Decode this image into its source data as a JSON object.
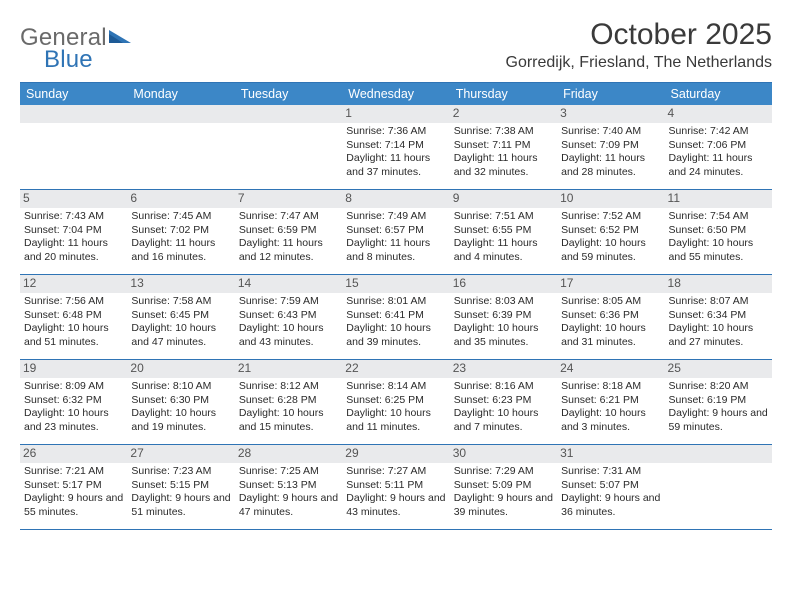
{
  "logo": {
    "part1": "General",
    "part2": "Blue"
  },
  "title": "October 2025",
  "location": "Gorredijk, Friesland, The Netherlands",
  "colors": {
    "header_bg": "#3c87c7",
    "border": "#2f74b5",
    "daynum_bg": "#e9eaec",
    "text": "#2a2a2a",
    "logo_gray": "#6a6a6a",
    "logo_blue": "#2f74b5"
  },
  "days_of_week": [
    "Sunday",
    "Monday",
    "Tuesday",
    "Wednesday",
    "Thursday",
    "Friday",
    "Saturday"
  ],
  "weeks": [
    [
      {
        "n": "",
        "empty": true
      },
      {
        "n": "",
        "empty": true
      },
      {
        "n": "",
        "empty": true
      },
      {
        "n": "1",
        "sr": "Sunrise: 7:36 AM",
        "ss": "Sunset: 7:14 PM",
        "dl": "Daylight: 11 hours and 37 minutes."
      },
      {
        "n": "2",
        "sr": "Sunrise: 7:38 AM",
        "ss": "Sunset: 7:11 PM",
        "dl": "Daylight: 11 hours and 32 minutes."
      },
      {
        "n": "3",
        "sr": "Sunrise: 7:40 AM",
        "ss": "Sunset: 7:09 PM",
        "dl": "Daylight: 11 hours and 28 minutes."
      },
      {
        "n": "4",
        "sr": "Sunrise: 7:42 AM",
        "ss": "Sunset: 7:06 PM",
        "dl": "Daylight: 11 hours and 24 minutes."
      }
    ],
    [
      {
        "n": "5",
        "sr": "Sunrise: 7:43 AM",
        "ss": "Sunset: 7:04 PM",
        "dl": "Daylight: 11 hours and 20 minutes."
      },
      {
        "n": "6",
        "sr": "Sunrise: 7:45 AM",
        "ss": "Sunset: 7:02 PM",
        "dl": "Daylight: 11 hours and 16 minutes."
      },
      {
        "n": "7",
        "sr": "Sunrise: 7:47 AM",
        "ss": "Sunset: 6:59 PM",
        "dl": "Daylight: 11 hours and 12 minutes."
      },
      {
        "n": "8",
        "sr": "Sunrise: 7:49 AM",
        "ss": "Sunset: 6:57 PM",
        "dl": "Daylight: 11 hours and 8 minutes."
      },
      {
        "n": "9",
        "sr": "Sunrise: 7:51 AM",
        "ss": "Sunset: 6:55 PM",
        "dl": "Daylight: 11 hours and 4 minutes."
      },
      {
        "n": "10",
        "sr": "Sunrise: 7:52 AM",
        "ss": "Sunset: 6:52 PM",
        "dl": "Daylight: 10 hours and 59 minutes."
      },
      {
        "n": "11",
        "sr": "Sunrise: 7:54 AM",
        "ss": "Sunset: 6:50 PM",
        "dl": "Daylight: 10 hours and 55 minutes."
      }
    ],
    [
      {
        "n": "12",
        "sr": "Sunrise: 7:56 AM",
        "ss": "Sunset: 6:48 PM",
        "dl": "Daylight: 10 hours and 51 minutes."
      },
      {
        "n": "13",
        "sr": "Sunrise: 7:58 AM",
        "ss": "Sunset: 6:45 PM",
        "dl": "Daylight: 10 hours and 47 minutes."
      },
      {
        "n": "14",
        "sr": "Sunrise: 7:59 AM",
        "ss": "Sunset: 6:43 PM",
        "dl": "Daylight: 10 hours and 43 minutes."
      },
      {
        "n": "15",
        "sr": "Sunrise: 8:01 AM",
        "ss": "Sunset: 6:41 PM",
        "dl": "Daylight: 10 hours and 39 minutes."
      },
      {
        "n": "16",
        "sr": "Sunrise: 8:03 AM",
        "ss": "Sunset: 6:39 PM",
        "dl": "Daylight: 10 hours and 35 minutes."
      },
      {
        "n": "17",
        "sr": "Sunrise: 8:05 AM",
        "ss": "Sunset: 6:36 PM",
        "dl": "Daylight: 10 hours and 31 minutes."
      },
      {
        "n": "18",
        "sr": "Sunrise: 8:07 AM",
        "ss": "Sunset: 6:34 PM",
        "dl": "Daylight: 10 hours and 27 minutes."
      }
    ],
    [
      {
        "n": "19",
        "sr": "Sunrise: 8:09 AM",
        "ss": "Sunset: 6:32 PM",
        "dl": "Daylight: 10 hours and 23 minutes."
      },
      {
        "n": "20",
        "sr": "Sunrise: 8:10 AM",
        "ss": "Sunset: 6:30 PM",
        "dl": "Daylight: 10 hours and 19 minutes."
      },
      {
        "n": "21",
        "sr": "Sunrise: 8:12 AM",
        "ss": "Sunset: 6:28 PM",
        "dl": "Daylight: 10 hours and 15 minutes."
      },
      {
        "n": "22",
        "sr": "Sunrise: 8:14 AM",
        "ss": "Sunset: 6:25 PM",
        "dl": "Daylight: 10 hours and 11 minutes."
      },
      {
        "n": "23",
        "sr": "Sunrise: 8:16 AM",
        "ss": "Sunset: 6:23 PM",
        "dl": "Daylight: 10 hours and 7 minutes."
      },
      {
        "n": "24",
        "sr": "Sunrise: 8:18 AM",
        "ss": "Sunset: 6:21 PM",
        "dl": "Daylight: 10 hours and 3 minutes."
      },
      {
        "n": "25",
        "sr": "Sunrise: 8:20 AM",
        "ss": "Sunset: 6:19 PM",
        "dl": "Daylight: 9 hours and 59 minutes."
      }
    ],
    [
      {
        "n": "26",
        "sr": "Sunrise: 7:21 AM",
        "ss": "Sunset: 5:17 PM",
        "dl": "Daylight: 9 hours and 55 minutes."
      },
      {
        "n": "27",
        "sr": "Sunrise: 7:23 AM",
        "ss": "Sunset: 5:15 PM",
        "dl": "Daylight: 9 hours and 51 minutes."
      },
      {
        "n": "28",
        "sr": "Sunrise: 7:25 AM",
        "ss": "Sunset: 5:13 PM",
        "dl": "Daylight: 9 hours and 47 minutes."
      },
      {
        "n": "29",
        "sr": "Sunrise: 7:27 AM",
        "ss": "Sunset: 5:11 PM",
        "dl": "Daylight: 9 hours and 43 minutes."
      },
      {
        "n": "30",
        "sr": "Sunrise: 7:29 AM",
        "ss": "Sunset: 5:09 PM",
        "dl": "Daylight: 9 hours and 39 minutes."
      },
      {
        "n": "31",
        "sr": "Sunrise: 7:31 AM",
        "ss": "Sunset: 5:07 PM",
        "dl": "Daylight: 9 hours and 36 minutes."
      },
      {
        "n": "",
        "empty": true
      }
    ]
  ]
}
